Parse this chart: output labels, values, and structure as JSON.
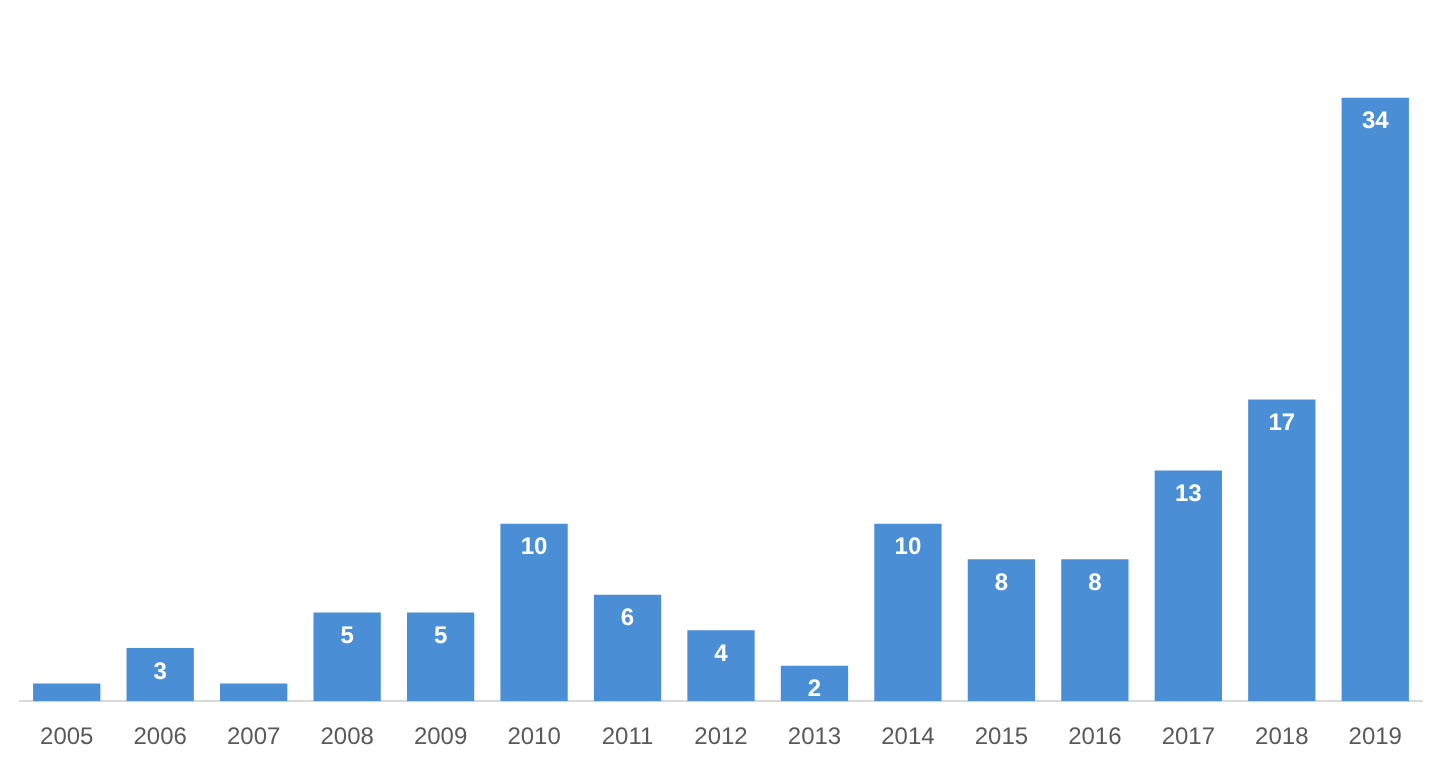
{
  "chart_data": {
    "type": "bar",
    "categories": [
      "2005",
      "2006",
      "2007",
      "2008",
      "2009",
      "2010",
      "2011",
      "2012",
      "2013",
      "2014",
      "2015",
      "2016",
      "2017",
      "2018",
      "2019"
    ],
    "values": [
      1,
      3,
      1,
      5,
      5,
      10,
      6,
      4,
      2,
      10,
      8,
      8,
      13,
      17,
      34
    ],
    "value_labels": [
      null,
      "3",
      null,
      "5",
      "5",
      "10",
      "6",
      "4",
      "2",
      "10",
      "8",
      "8",
      "13",
      "17",
      "34"
    ],
    "color": "#4a8fd6",
    "grid": false,
    "legend": false
  }
}
